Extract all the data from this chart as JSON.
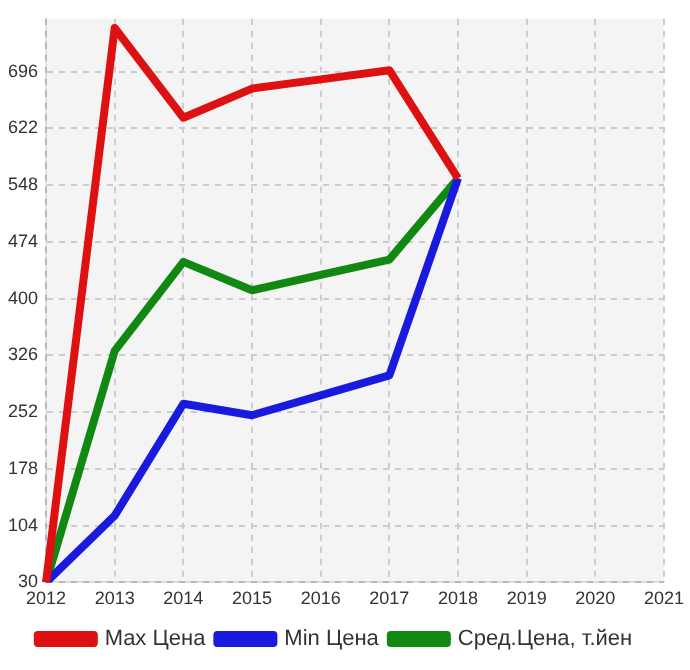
{
  "chart_data": {
    "type": "line",
    "categories": [
      "2012",
      "2013",
      "2014",
      "2015",
      "2016",
      "2017",
      "2018",
      "2019",
      "2020",
      "2021"
    ],
    "series": [
      {
        "name": "Max Цена",
        "color": "#dd1111",
        "values": [
          30,
          753,
          636,
          674,
          686,
          698,
          557,
          null,
          null,
          null
        ]
      },
      {
        "name": "Min Цена",
        "color": "#1a1adf",
        "values": [
          30,
          117,
          263,
          248,
          274,
          300,
          557,
          null,
          null,
          null
        ]
      },
      {
        "name": "Сред.Цена, т.йен",
        "color": "#118811",
        "values": [
          30,
          332,
          448,
          411,
          431,
          451,
          557,
          null,
          null,
          null
        ]
      }
    ],
    "ylim": [
      30,
      765
    ],
    "yticks": [
      30,
      104,
      178,
      252,
      326,
      400,
      474,
      548,
      622,
      696
    ],
    "grid": true,
    "legend": "bottom",
    "marker": "none",
    "line_style": "solid"
  }
}
